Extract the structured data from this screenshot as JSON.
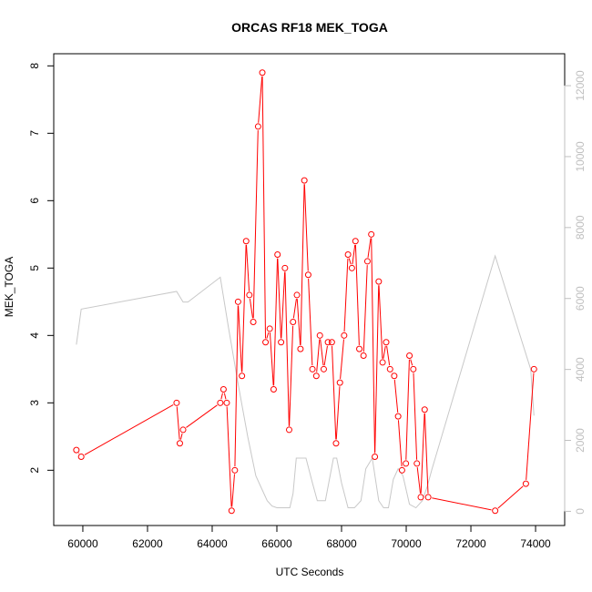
{
  "chart_data": {
    "type": "line",
    "title": "ORCAS RF18 MEK_TOGA",
    "xlabel": "UTC Seconds",
    "ylabel": "MEK_TOGA",
    "xlim": [
      59100,
      74900
    ],
    "ylim": [
      1.18,
      8.18
    ],
    "y2lim": [
      -400,
      12900
    ],
    "x_ticks": [
      60000,
      62000,
      64000,
      66000,
      68000,
      70000,
      72000,
      74000
    ],
    "y_ticks": [
      2,
      3,
      4,
      5,
      6,
      7,
      8
    ],
    "y2_ticks": [
      0,
      2000,
      4000,
      6000,
      8000,
      10000,
      12000
    ],
    "grid": false,
    "series": [
      {
        "axis": "left",
        "color": "#ff0000",
        "marker": "open-circle",
        "points": [
          [
            59800,
            2.3
          ],
          [
            59950,
            2.2
          ],
          [
            62900,
            3.0
          ],
          [
            63000,
            2.4
          ],
          [
            63100,
            2.6
          ],
          [
            64250,
            3.0
          ],
          [
            64350,
            3.2
          ],
          [
            64450,
            3.0
          ],
          [
            64600,
            1.4
          ],
          [
            64700,
            2.0
          ],
          [
            64800,
            4.5
          ],
          [
            64920,
            3.4
          ],
          [
            65050,
            5.4
          ],
          [
            65150,
            4.6
          ],
          [
            65270,
            4.2
          ],
          [
            65420,
            7.1
          ],
          [
            65550,
            7.9
          ],
          [
            65650,
            3.9
          ],
          [
            65780,
            4.1
          ],
          [
            65900,
            3.2
          ],
          [
            66020,
            5.2
          ],
          [
            66130,
            3.9
          ],
          [
            66250,
            5.0
          ],
          [
            66380,
            2.6
          ],
          [
            66500,
            4.2
          ],
          [
            66620,
            4.6
          ],
          [
            66730,
            3.8
          ],
          [
            66850,
            6.3
          ],
          [
            66970,
            4.9
          ],
          [
            67100,
            3.5
          ],
          [
            67220,
            3.4
          ],
          [
            67330,
            4.0
          ],
          [
            67450,
            3.5
          ],
          [
            67580,
            3.9
          ],
          [
            67700,
            3.9
          ],
          [
            67830,
            2.4
          ],
          [
            67950,
            3.3
          ],
          [
            68080,
            4.0
          ],
          [
            68200,
            5.2
          ],
          [
            68320,
            5.0
          ],
          [
            68430,
            5.4
          ],
          [
            68550,
            3.8
          ],
          [
            68680,
            3.7
          ],
          [
            68800,
            5.1
          ],
          [
            68920,
            5.5
          ],
          [
            69030,
            2.2
          ],
          [
            69150,
            4.8
          ],
          [
            69270,
            3.6
          ],
          [
            69380,
            3.9
          ],
          [
            69500,
            3.5
          ],
          [
            69630,
            3.4
          ],
          [
            69750,
            2.8
          ],
          [
            69870,
            2.0
          ],
          [
            69990,
            2.1
          ],
          [
            70100,
            3.7
          ],
          [
            70220,
            3.5
          ],
          [
            70330,
            2.1
          ],
          [
            70450,
            1.6
          ],
          [
            70570,
            2.9
          ],
          [
            70680,
            1.6
          ],
          [
            72750,
            1.4
          ],
          [
            73700,
            1.8
          ],
          [
            73950,
            3.5
          ]
        ]
      },
      {
        "axis": "right",
        "color": "#c8c8c8",
        "marker": "none",
        "points": [
          [
            59800,
            4700
          ],
          [
            59950,
            5700
          ],
          [
            62900,
            6200
          ],
          [
            63100,
            5900
          ],
          [
            63250,
            5900
          ],
          [
            64250,
            6600
          ],
          [
            64500,
            5200
          ],
          [
            64800,
            3600
          ],
          [
            65100,
            2100
          ],
          [
            65350,
            1000
          ],
          [
            65700,
            300
          ],
          [
            65850,
            150
          ],
          [
            66000,
            100
          ],
          [
            66200,
            100
          ],
          [
            66400,
            100
          ],
          [
            66500,
            500
          ],
          [
            66600,
            1500
          ],
          [
            66800,
            1500
          ],
          [
            66900,
            1500
          ],
          [
            67100,
            800
          ],
          [
            67250,
            300
          ],
          [
            67500,
            300
          ],
          [
            67750,
            1500
          ],
          [
            67850,
            1500
          ],
          [
            68000,
            800
          ],
          [
            68200,
            100
          ],
          [
            68400,
            100
          ],
          [
            68600,
            300
          ],
          [
            68750,
            1200
          ],
          [
            68950,
            1500
          ],
          [
            69150,
            300
          ],
          [
            69300,
            100
          ],
          [
            69450,
            100
          ],
          [
            69600,
            900
          ],
          [
            69750,
            1200
          ],
          [
            69900,
            1000
          ],
          [
            70100,
            200
          ],
          [
            70300,
            100
          ],
          [
            70500,
            300
          ],
          [
            70650,
            700
          ],
          [
            70800,
            1200
          ],
          [
            72750,
            7200
          ],
          [
            73850,
            4000
          ],
          [
            73950,
            2700
          ]
        ]
      }
    ]
  }
}
